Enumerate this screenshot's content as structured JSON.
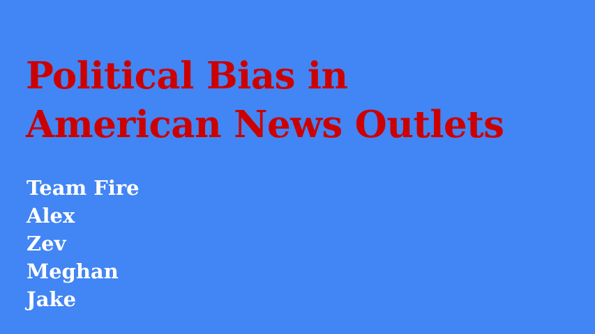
{
  "slide": {
    "background_color": "#4285f4",
    "title_color": "#cc0000",
    "text_color": "#ffffff",
    "title_lines": [
      "Political Bias in",
      "American News Outlets"
    ],
    "team_lines": [
      "Team Fire",
      "Alex",
      "Zev",
      "Meghan",
      "Jake"
    ]
  }
}
